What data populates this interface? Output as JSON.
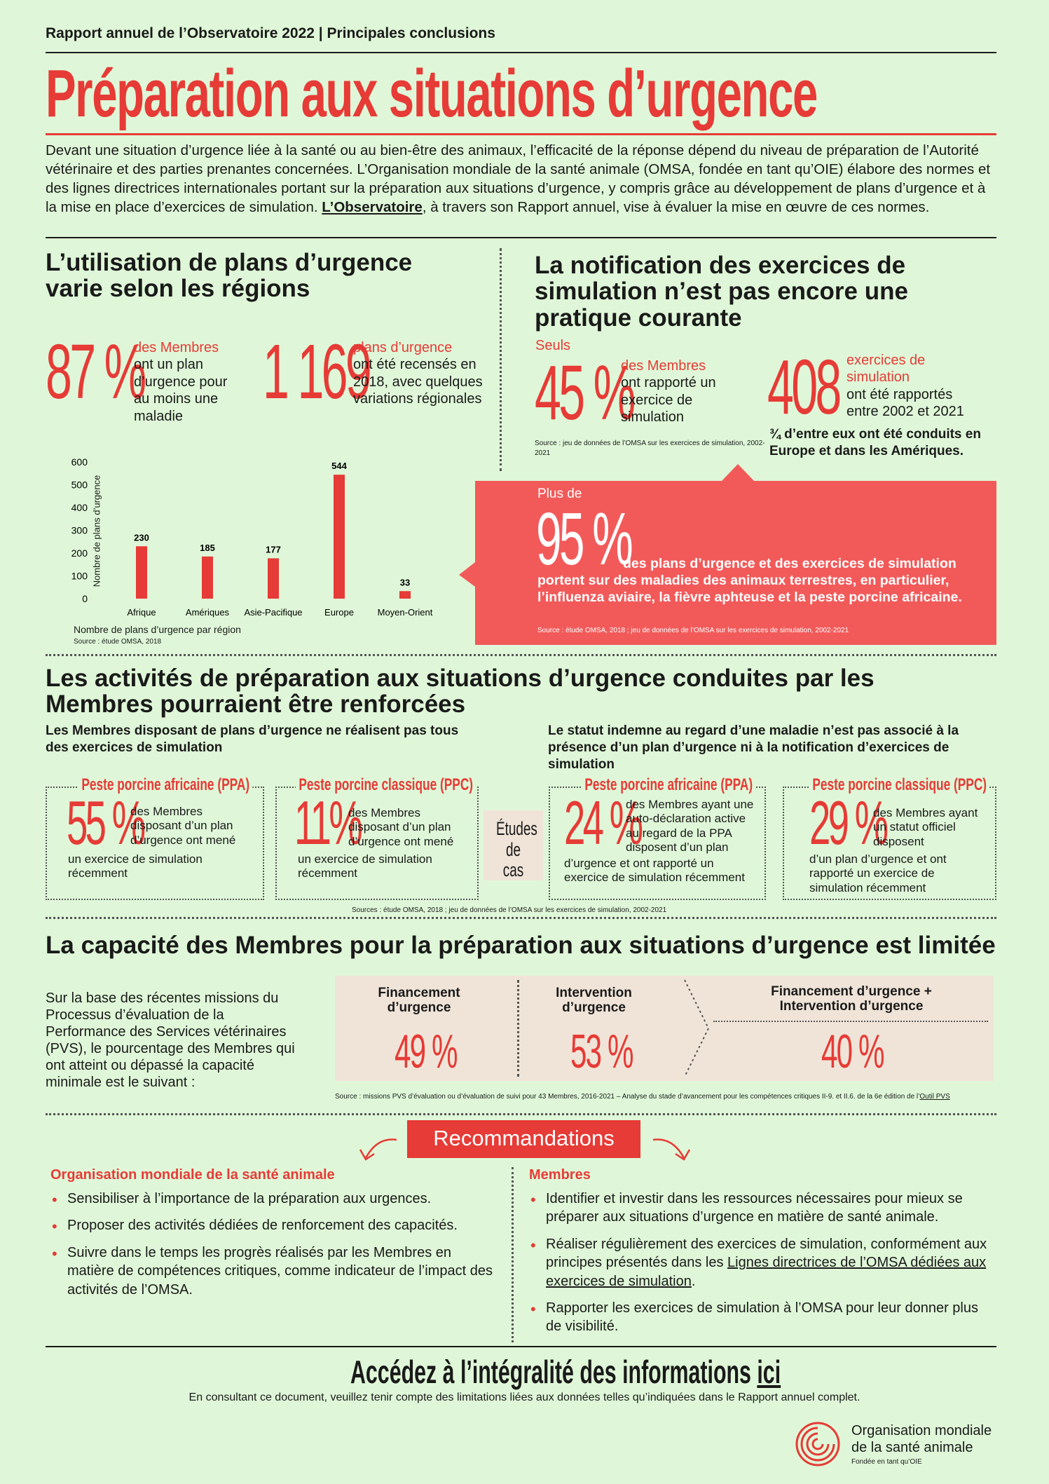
{
  "header": {
    "kicker": "Rapport annuel de l’Observatoire 2022 | Principales conclusions",
    "title": "Préparation aux situations d’urgence",
    "intro_1": "Devant une situation d’urgence liée à la santé ou au bien-être des animaux, l’efficacité de la réponse dépend du niveau de préparation de l’Autorité vétérinaire et des parties prenantes concernées. L’Organisation mondiale de la santé animale (OMSA, fondée en tant qu’OIE) élabore des normes et des lignes directrices internationales portant sur la préparation aux situations d’urgence, y compris grâce au développement de plans d’urgence et à la mise en place d’exercices de simulation. ",
    "intro_link": "L’Observatoire",
    "intro_2": ", à travers son Rapport annuel, vise à évaluer la mise en œuvre de ces normes."
  },
  "section1": {
    "title": "L’utilisation de plans d’urgence varie selon les régions",
    "stat1": {
      "value": "87 %",
      "red": "des Membres",
      "text": "ont un plan d’urgence pour au moins une maladie"
    },
    "stat2": {
      "value": "1 169",
      "red": "plans d’urgence",
      "text": "ont été recensés en 2018, avec quelques variations régionales"
    }
  },
  "chart_data": {
    "type": "bar",
    "categories": [
      "Afrique",
      "Amériques",
      "Asie-Pacifique",
      "Europe",
      "Moyen-Orient"
    ],
    "values": [
      230,
      185,
      177,
      544,
      33
    ],
    "data_labels": [
      "230",
      "185",
      "177",
      "544",
      "33"
    ],
    "ylabel": "Nombre de plans d’urgence",
    "yticks": [
      "0",
      "100",
      "200",
      "300",
      "400",
      "500",
      "600"
    ],
    "ylim": [
      0,
      600
    ],
    "caption": "Nombre de plans d’urgence par région",
    "source": "Source : étude OMSA, 2018",
    "bar_color": "#e63b36"
  },
  "section2": {
    "title": "La notification des exercices de simulation n’est pas encore une pratique courante",
    "stat1": {
      "pre": "Seuls",
      "value": "45 %",
      "red": "des Membres",
      "text": "ont rapporté un exercice de simulation"
    },
    "source1": "Source : jeu de données de l’OMSA sur les exercices de simulation, 2002-2021",
    "stat2": {
      "value": "408",
      "red": "exercices de simulation",
      "text": "ont été rapportés entre 2002 et 2021"
    },
    "note": "¾ d’entre eux ont été conduits en Europe et dans les Amériques.",
    "callout": {
      "pre": "Plus de",
      "value": "95 %",
      "text": "des plans d’urgence et des exercices de simulation portent sur des maladies des animaux terrestres, en particulier, l’influenza aviaire, la fièvre aphteuse et la peste porcine africaine.",
      "source": "Source : étude OMSA, 2018 ; jeu de données de l’OMSA sur les exercices de simulation, 2002-2021"
    }
  },
  "section3": {
    "title": "Les activités de préparation aux situations d’urgence conduites par les Membres pourraient être renforcées",
    "left_sub": "Les Membres disposant de plans d’urgence ne réalisent pas tous des exercices de simulation",
    "right_sub": "Le statut indemne au regard d’une maladie n’est pas associé à la présence d’un plan d’urgence ni à la notification d’exercices de simulation",
    "case_label": "Études de cas",
    "cases": [
      {
        "title": "Peste porcine africaine (PPA)",
        "value": "55 %",
        "text_a": "des Membres disposant d’un plan d’urgence ont mené",
        "text_b": "un exercice de simulation récemment"
      },
      {
        "title": "Peste porcine classique (PPC)",
        "value": "11%",
        "text_a": "des Membres disposant d’un plan d’urgence ont mené",
        "text_b": "un exercice de simulation récemment"
      },
      {
        "title": "Peste porcine africaine (PPA)",
        "value": "24 %",
        "text_a": "des Membres ayant une auto-déclaration active au regard de la PPA disposent d’un plan",
        "text_b": "d’urgence et ont rapporté un exercice de simulation récemment"
      },
      {
        "title": "Peste porcine classique (PPC)",
        "value": "29 %",
        "text_a": "des Membres ayant un statut officiel disposent",
        "text_b": "d’un plan d’urgence et ont rapporté un exercice de simulation récemment"
      }
    ],
    "source": "Sources : étude OMSA, 2018 ; jeu de données de l’OMSA sur les exercices de simulation, 2002-2021"
  },
  "section4": {
    "title": "La capacité des Membres pour la préparation aux situations d’urgence est limitée",
    "text": "Sur la base des récentes missions du Processus d’évaluation de la Performance des Services vétérinaires (PVS), le pourcentage des Membres qui ont atteint ou dépassé la capacité minimale est le suivant :",
    "cols": [
      {
        "label": "Financement d’urgence",
        "value": "49 %"
      },
      {
        "label": "Intervention d’urgence",
        "value": "53 %"
      },
      {
        "label": "Financement d’urgence + Intervention d’urgence",
        "value": "40 %"
      }
    ],
    "source": "Source : missions PVS d’évaluation ou d’évaluation de suivi pour 43 Membres, 2016-2021 – Analyse du stade d’avancement pour les compétences critiques II-9. et II.6. de la 6e édition de l’",
    "source_link": "Outil PVS"
  },
  "recommendations": {
    "title": "Recommandations",
    "left_title": "Organisation mondiale de la santé animale",
    "left": [
      "Sensibiliser à l’importance de la préparation aux urgences.",
      "Proposer des activités dédiées de renforcement des capacités.",
      "Suivre dans le temps les progrès réalisés par les Membres en matière de compétences critiques, comme indicateur de l’impact des activités de l’OMSA."
    ],
    "right_title": "Membres",
    "right_1": "Identifier et investir dans les ressources nécessaires pour mieux se préparer aux situations d’urgence en matière de santé animale.",
    "right_2a": "Réaliser régulièrement des exercices de simulation, conformément aux principes présentés dans les ",
    "right_2_link": "Lignes directrices de l’OMSA dédiées aux exercices de simulation",
    "right_2b": ".",
    "right_3": "Rapporter les exercices de simulation à l’OMSA pour leur donner plus de visibilité."
  },
  "footer": {
    "cta": "Accédez à l’intégralité des informations ",
    "cta_link": "ici",
    "note": "En consultant ce document, veuillez tenir compte des limitations liées aux données telles qu’indiquées dans le Rapport annuel complet.",
    "logo_line1": "Organisation mondiale",
    "logo_line2": "de la santé animale",
    "logo_line3": "Fondée en tant qu’OIE"
  }
}
